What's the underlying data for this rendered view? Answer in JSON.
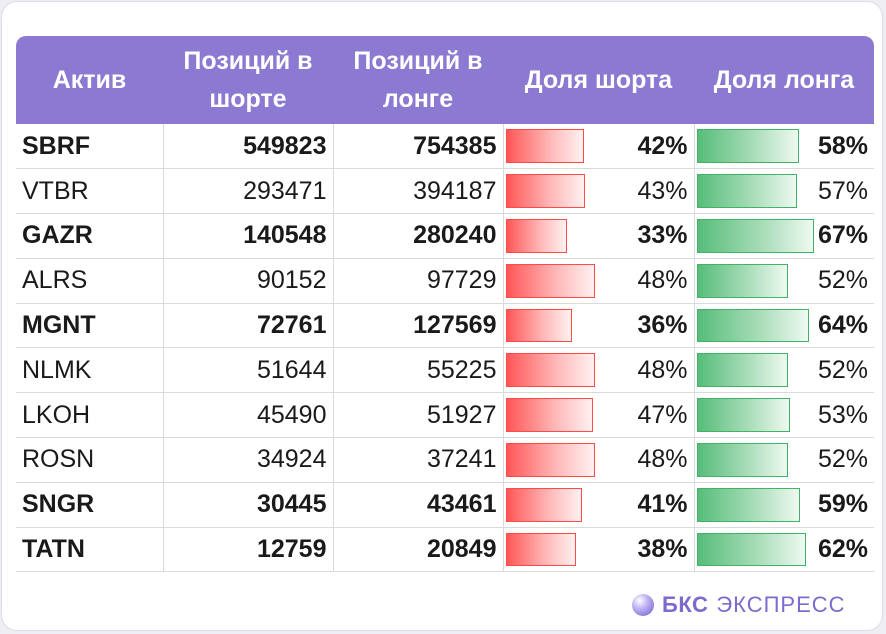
{
  "header": {
    "asset": "Актив",
    "short_positions": "Позиций в шорте",
    "long_positions": "Позиций в лонге",
    "short_share": "Доля шорта",
    "long_share": "Доля лонга"
  },
  "rows": [
    {
      "asset": "SBRF",
      "short": "549823",
      "long": "754385",
      "short_pct": "42%",
      "long_pct": "58%",
      "short_share": 42,
      "long_share": 58,
      "bold": true
    },
    {
      "asset": "VTBR",
      "short": "293471",
      "long": "394187",
      "short_pct": "43%",
      "long_pct": "57%",
      "short_share": 43,
      "long_share": 57,
      "bold": false
    },
    {
      "asset": "GAZR",
      "short": "140548",
      "long": "280240",
      "short_pct": "33%",
      "long_pct": "67%",
      "short_share": 33,
      "long_share": 67,
      "bold": true
    },
    {
      "asset": "ALRS",
      "short": "90152",
      "long": "97729",
      "short_pct": "48%",
      "long_pct": "52%",
      "short_share": 48,
      "long_share": 52,
      "bold": false
    },
    {
      "asset": "MGNT",
      "short": "72761",
      "long": "127569",
      "short_pct": "36%",
      "long_pct": "64%",
      "short_share": 36,
      "long_share": 64,
      "bold": true
    },
    {
      "asset": "NLMK",
      "short": "51644",
      "long": "55225",
      "short_pct": "48%",
      "long_pct": "52%",
      "short_share": 48,
      "long_share": 52,
      "bold": false
    },
    {
      "asset": "LKOH",
      "short": "45490",
      "long": "51927",
      "short_pct": "47%",
      "long_pct": "53%",
      "short_share": 47,
      "long_share": 53,
      "bold": false
    },
    {
      "asset": "ROSN",
      "short": "34924",
      "long": "37241",
      "short_pct": "48%",
      "long_pct": "52%",
      "short_share": 48,
      "long_share": 52,
      "bold": false
    },
    {
      "asset": "SNGR",
      "short": "30445",
      "long": "43461",
      "short_pct": "41%",
      "long_pct": "59%",
      "short_share": 41,
      "long_share": 59,
      "bold": true
    },
    {
      "asset": "TATN",
      "short": "12759",
      "long": "20849",
      "short_pct": "38%",
      "long_pct": "62%",
      "short_share": 38,
      "long_share": 62,
      "bold": true
    }
  ],
  "brand": {
    "name_bold": "БКС",
    "name_light": "ЭКСПРЕСС",
    "icon": "bks-sphere-logo-icon"
  },
  "colors": {
    "header_bg": "#8c79d2",
    "short_bar": "#ff5757",
    "long_bar": "#57bd7a",
    "brand": "#7e6acc"
  }
}
